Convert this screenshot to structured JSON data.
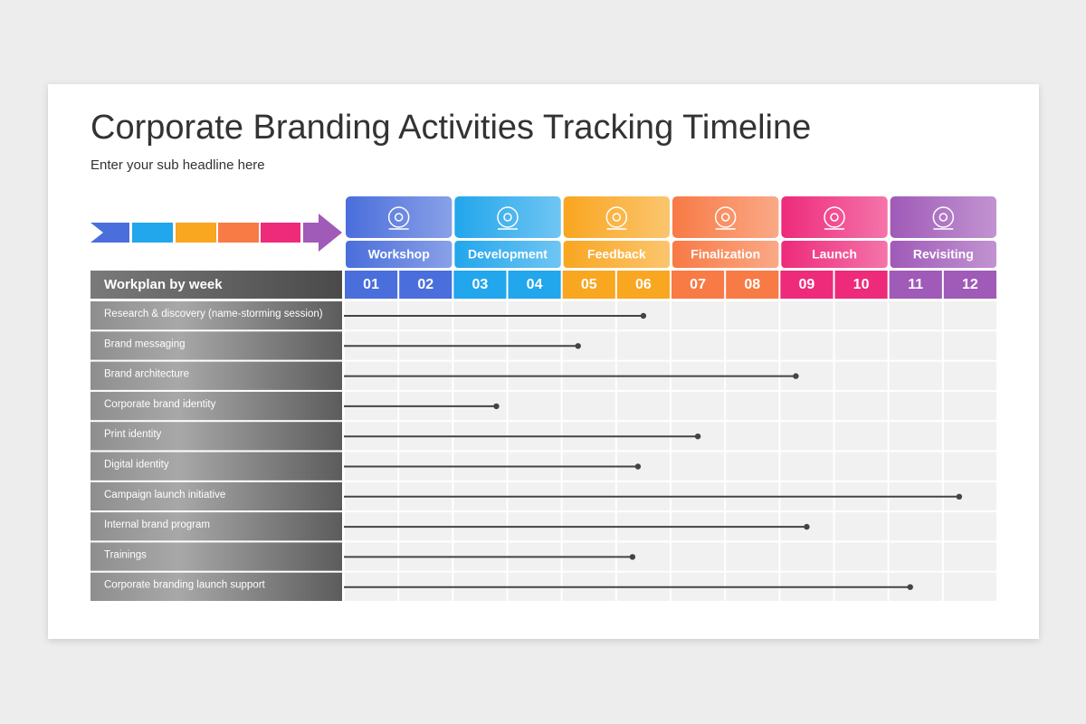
{
  "header": {
    "title": "Corporate Branding Activities Tracking Timeline",
    "subtitle": "Enter your sub headline here"
  },
  "timeline": {
    "phases": [
      {
        "name": "Workshop",
        "color": "#4a6edb"
      },
      {
        "name": "Development",
        "color": "#22a6ec"
      },
      {
        "name": "Feedback",
        "color": "#f9a620"
      },
      {
        "name": "Finalization",
        "color": "#f87a45"
      },
      {
        "name": "Launch",
        "color": "#ee2a7b"
      },
      {
        "name": "Revisiting",
        "color": "#a05ab8"
      }
    ],
    "week_header": "Workplan by week",
    "weeks": [
      "01",
      "02",
      "03",
      "04",
      "05",
      "06",
      "07",
      "08",
      "09",
      "10",
      "11",
      "12"
    ],
    "tasks": [
      {
        "label": "Research & discovery (name-storming session)",
        "end": 5.5
      },
      {
        "label": "Brand messaging",
        "end": 4.3
      },
      {
        "label": "Brand architecture",
        "end": 8.3
      },
      {
        "label": "Corporate brand identity",
        "end": 2.8
      },
      {
        "label": "Print identity",
        "end": 6.5
      },
      {
        "label": "Digital identity",
        "end": 5.4
      },
      {
        "label": "Campaign launch initiative",
        "end": 11.3
      },
      {
        "label": "Internal brand program",
        "end": 8.5
      },
      {
        "label": "Trainings",
        "end": 5.3
      },
      {
        "label": "Corporate branding launch support",
        "end": 10.4
      }
    ]
  }
}
